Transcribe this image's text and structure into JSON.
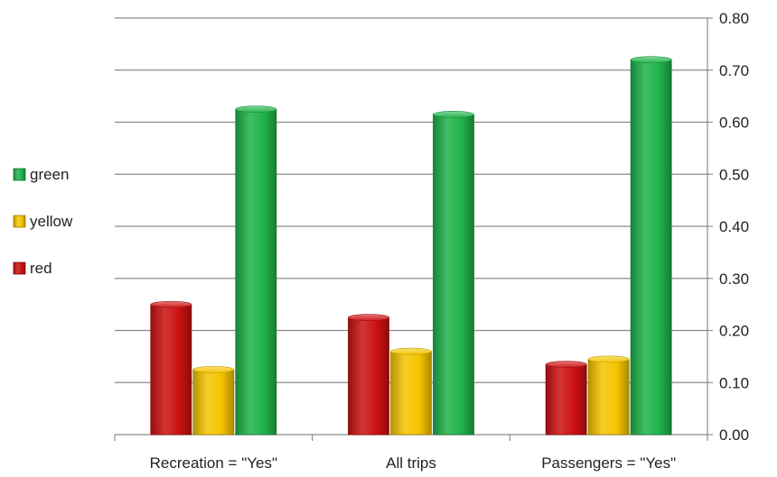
{
  "chart_data": {
    "type": "bar",
    "categories": [
      "Recreation = \"Yes\"",
      "All trips",
      "Passengers = \"Yes\""
    ],
    "series": [
      {
        "name": "red",
        "color": "#cc1111",
        "values": [
          0.25,
          0.225,
          0.135
        ]
      },
      {
        "name": "yellow",
        "color": "#f5c400",
        "values": [
          0.125,
          0.16,
          0.145
        ]
      },
      {
        "name": "green",
        "color": "#1fb34a",
        "values": [
          0.625,
          0.615,
          0.72
        ]
      }
    ],
    "ylim": [
      0,
      0.8
    ],
    "yticks": [
      "0.00",
      "0.10",
      "0.20",
      "0.30",
      "0.40",
      "0.50",
      "0.60",
      "0.70",
      "0.80"
    ],
    "y_axis_side": "right",
    "grid": true,
    "legend_position": "left",
    "legend_order": [
      "green",
      "yellow",
      "red"
    ],
    "title": "",
    "xlabel": "",
    "ylabel": ""
  }
}
